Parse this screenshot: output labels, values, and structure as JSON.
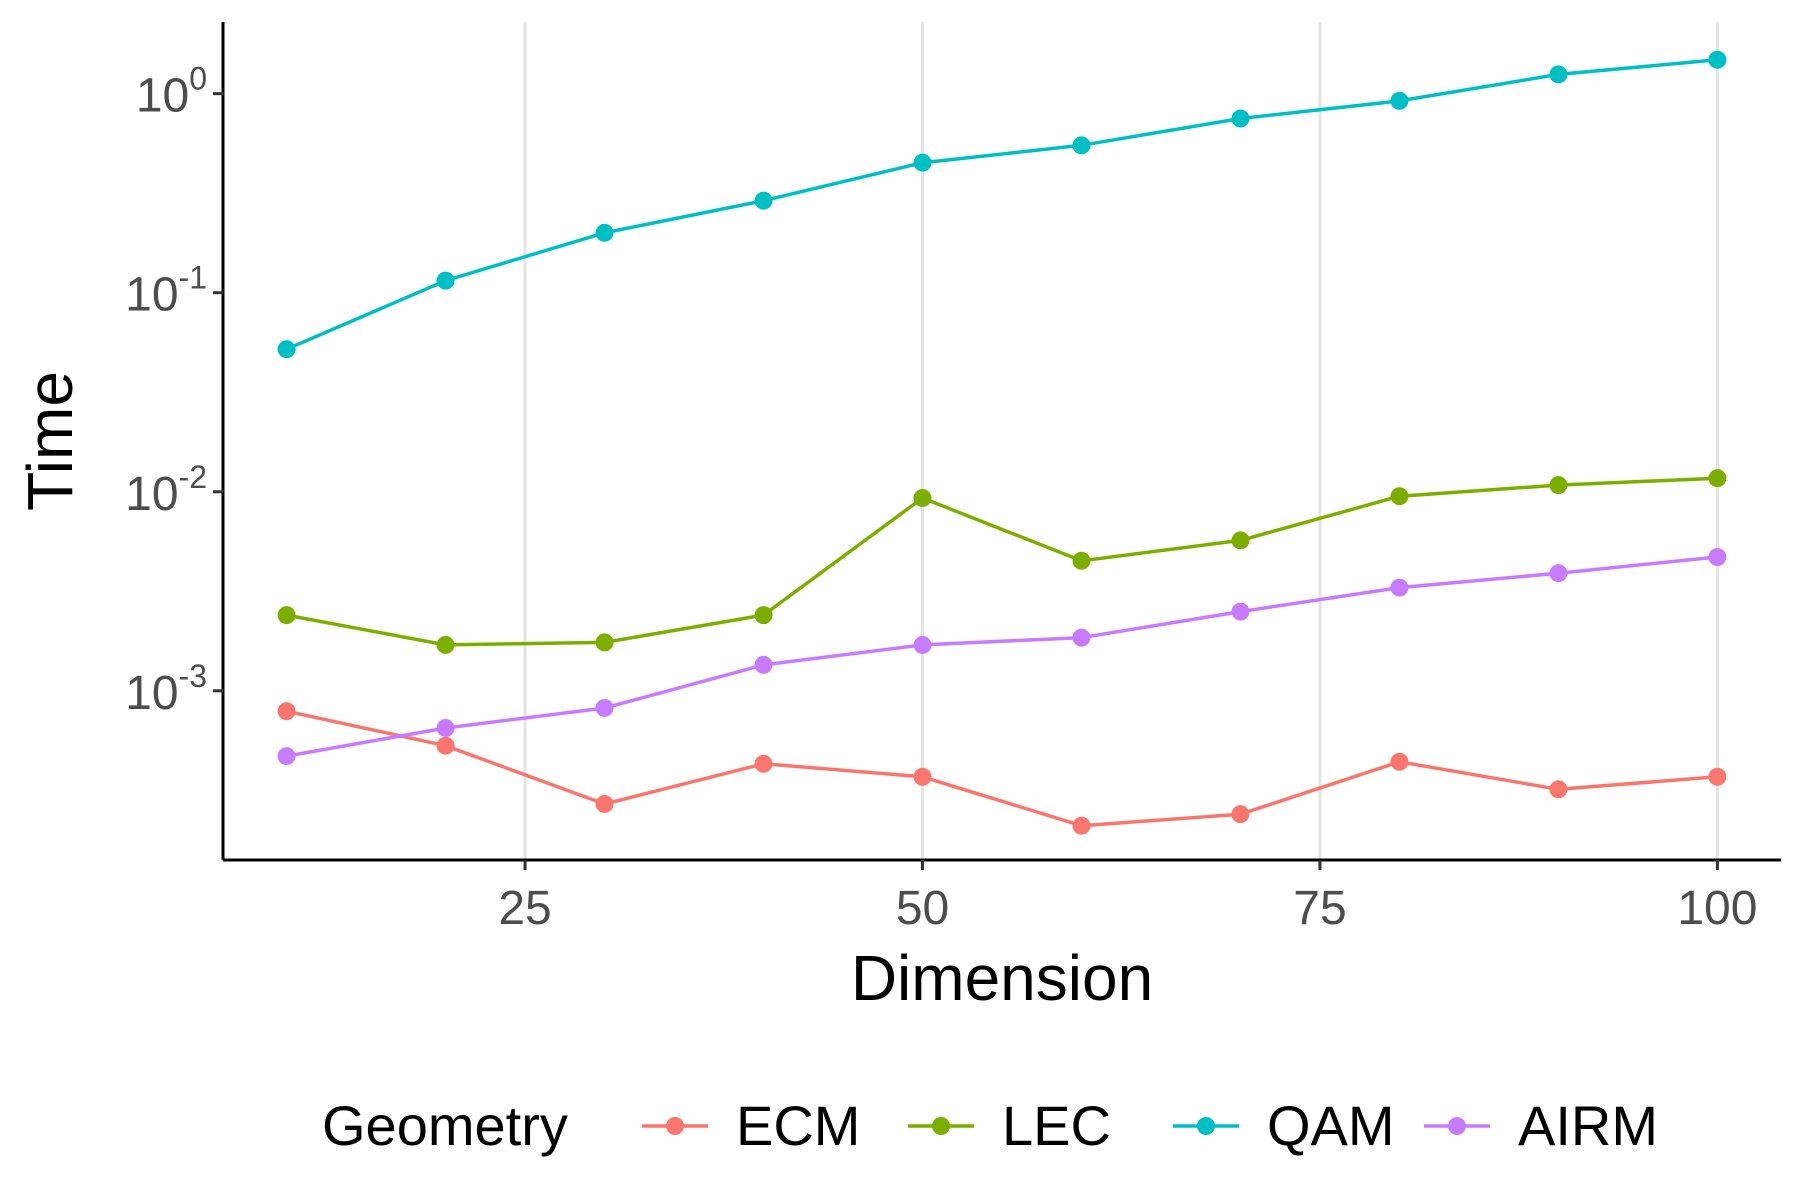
{
  "chart_data": {
    "type": "line",
    "title": "",
    "xlabel": "Dimension",
    "ylabel": "Time",
    "yscale": "log10",
    "xlim": [
      6,
      104
    ],
    "ylim_log10": [
      -3.85,
      0.36
    ],
    "x_ticks": [
      25,
      50,
      75,
      100
    ],
    "x_tick_labels": [
      "25",
      "50",
      "75",
      "100"
    ],
    "y_ticks": [
      {
        "value": 1,
        "base": "10",
        "exp": "0"
      },
      {
        "value": 0.1,
        "base": "10",
        "exp": "-1"
      },
      {
        "value": 0.01,
        "base": "10",
        "exp": "-2"
      },
      {
        "value": 0.001,
        "base": "10",
        "exp": "-3"
      }
    ],
    "grid": "vertical major",
    "x": [
      10,
      20,
      30,
      40,
      50,
      60,
      70,
      80,
      90,
      100
    ],
    "legend": {
      "title": "Geometry",
      "position": "bottom"
    },
    "series": [
      {
        "name": "ECM",
        "color": "#F8766D",
        "values": [
          0.00079,
          0.00053,
          0.00027,
          0.00043,
          0.00037,
          0.00021,
          0.00024,
          0.00044,
          0.00032,
          0.00037
        ]
      },
      {
        "name": "LEC",
        "color": "#7CAE00",
        "values": [
          0.0024,
          0.0017,
          0.00175,
          0.0024,
          0.0093,
          0.0045,
          0.0057,
          0.0095,
          0.0108,
          0.0117
        ]
      },
      {
        "name": "QAM",
        "color": "#00BFC4",
        "values": [
          0.052,
          0.115,
          0.2,
          0.29,
          0.45,
          0.55,
          0.75,
          0.92,
          1.25,
          1.48
        ]
      },
      {
        "name": "AIRM",
        "color": "#C77CFF",
        "values": [
          0.00047,
          0.00065,
          0.00082,
          0.00135,
          0.0017,
          0.00185,
          0.0025,
          0.0033,
          0.0039,
          0.0047
        ]
      }
    ]
  }
}
